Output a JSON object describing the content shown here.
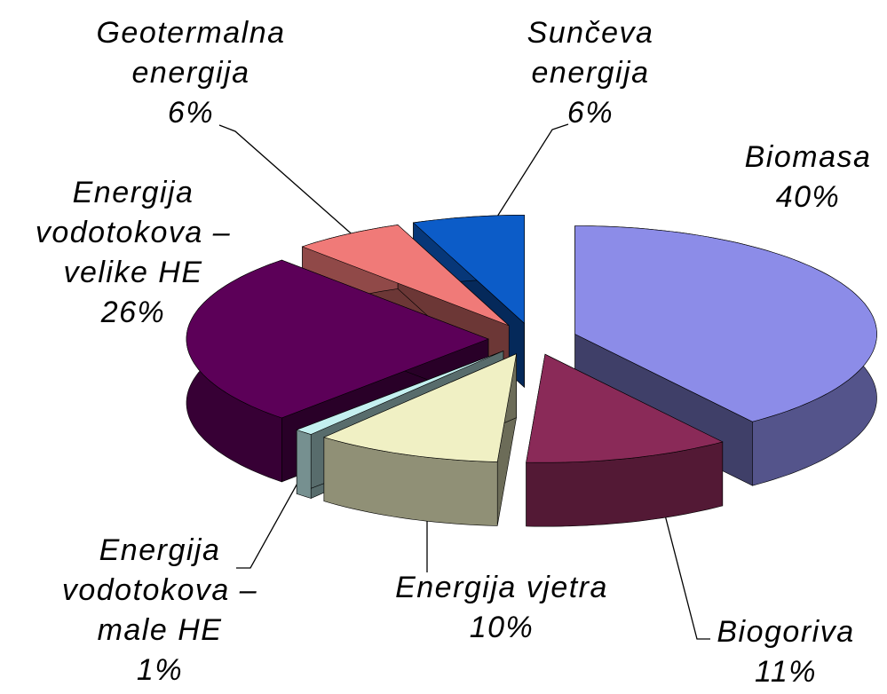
{
  "chart_data": {
    "type": "pie3d",
    "categories": [
      "Biomasa",
      "Biogoriva",
      "Energija vjetra",
      "Energija vodotokova – male HE",
      "Energija vodotokova – velike HE",
      "Geotermalna energija",
      "Sunčeva energija"
    ],
    "values": [
      40,
      11,
      10,
      1,
      26,
      6,
      6
    ],
    "value_labels": [
      "40%",
      "11%",
      "10%",
      "1%",
      "26%",
      "6%",
      "6%"
    ],
    "colors": [
      "#8c8ce8",
      "#8a2a58",
      "#f0f0c4",
      "#c4f0f0",
      "#5c0058",
      "#f07a78",
      "#0c5cc8"
    ]
  }
}
